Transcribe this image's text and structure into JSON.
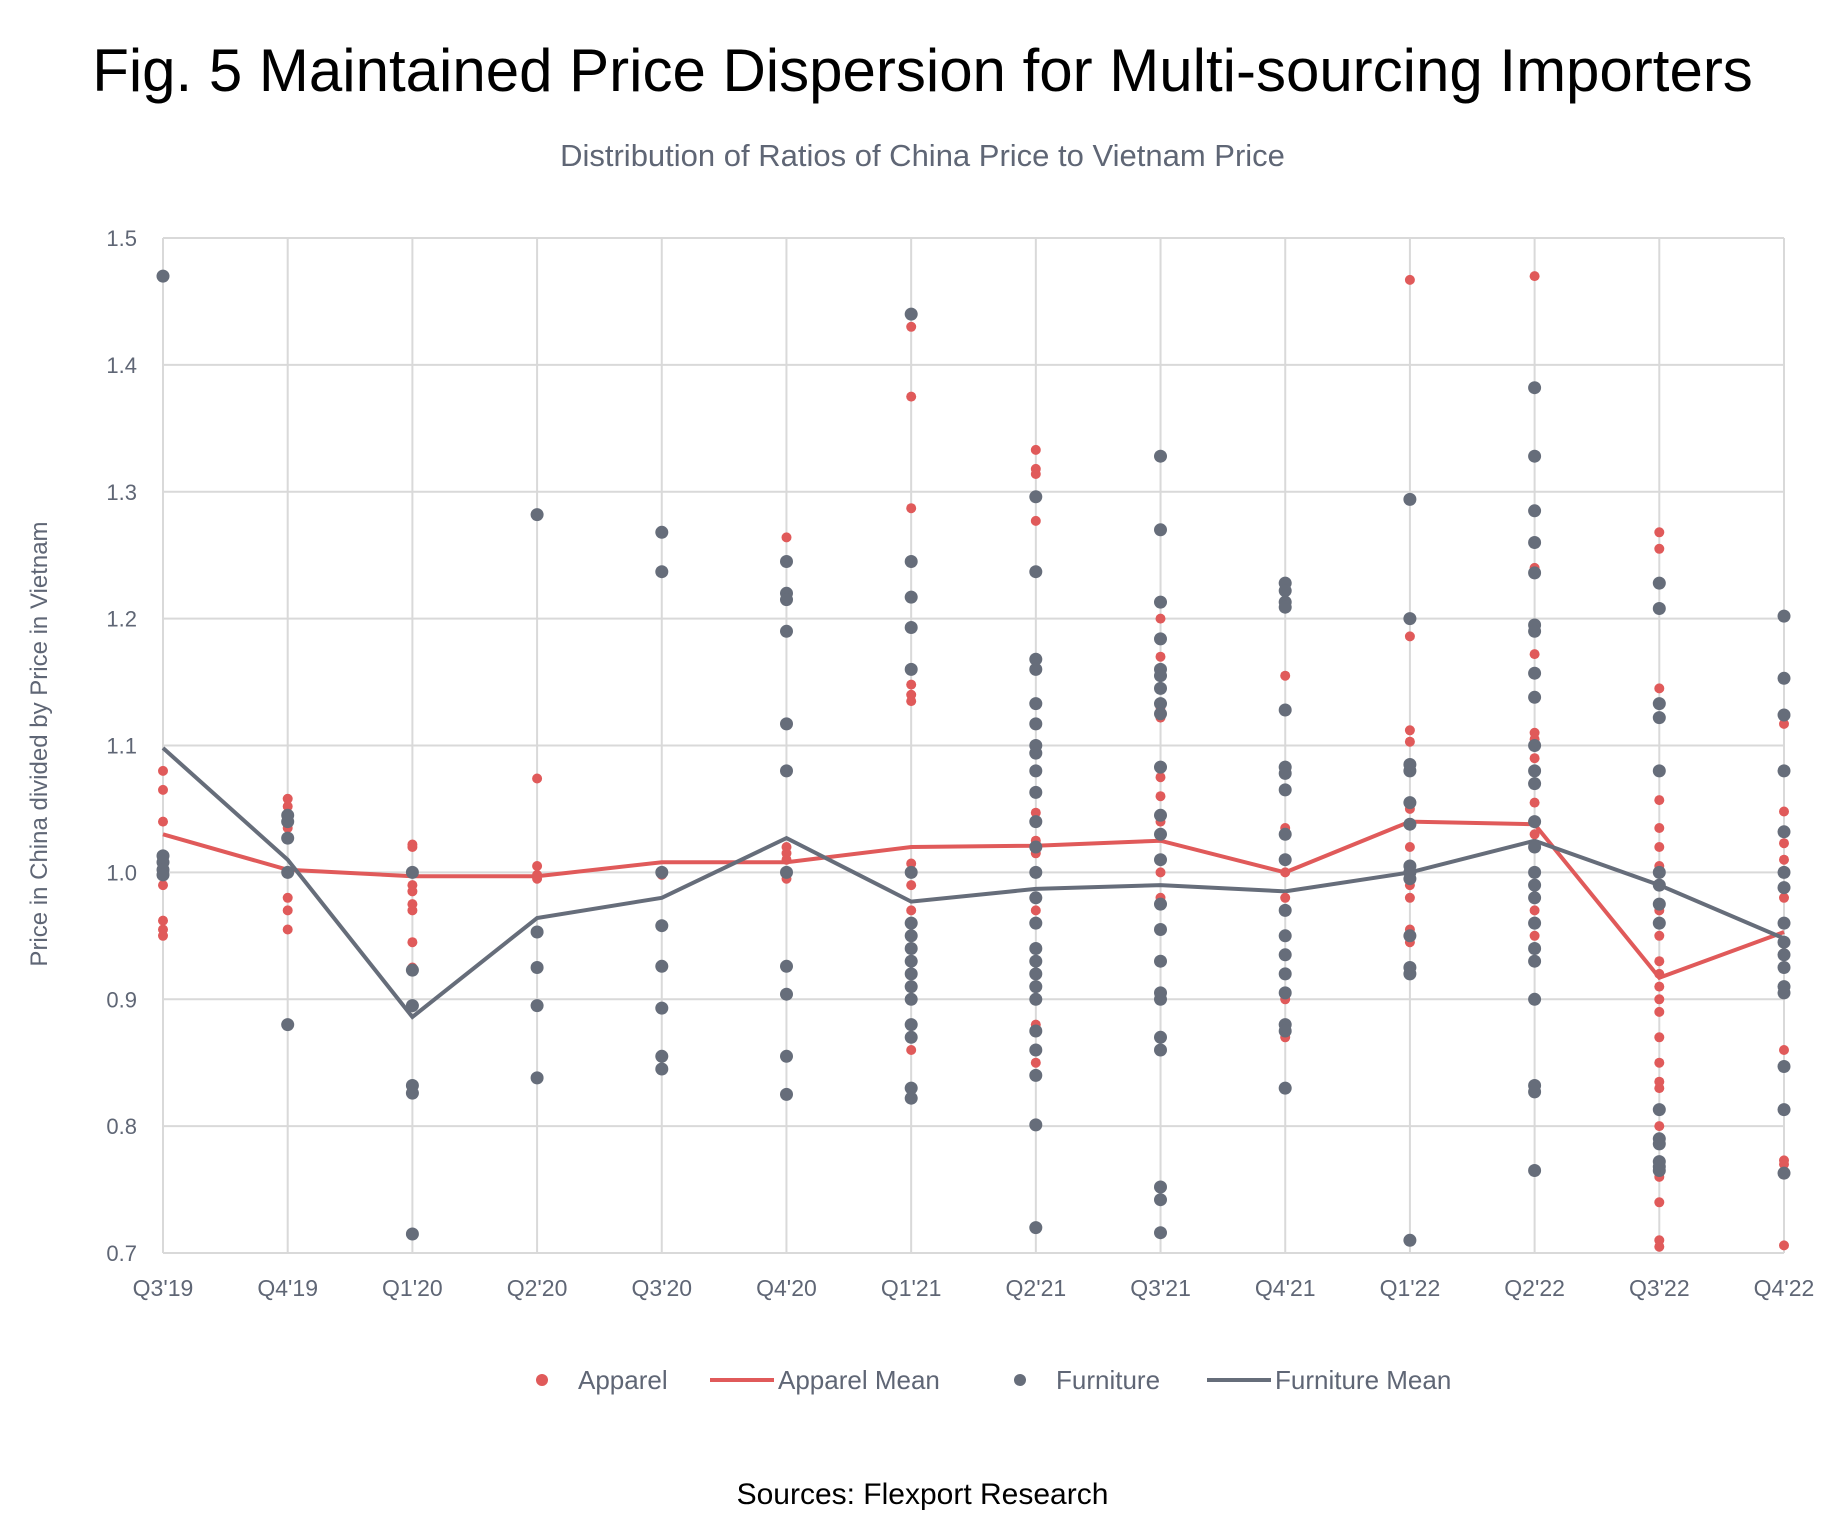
{
  "title": "Fig. 5 Maintained Price Dispersion for Multi-sourcing Importers",
  "subtitle": "Distribution of Ratios of China Price to Vietnam Price",
  "source": "Sources: Flexport Research",
  "colors": {
    "apparel": "#e05a5a",
    "furniture": "#666d7a",
    "grid": "#d9d9d9",
    "text": "#5f6675"
  },
  "chart_data": {
    "type": "scatter",
    "title": "Distribution of Ratios of China Price to Vietnam Price",
    "xlabel": "",
    "ylabel": "Price in China divided by Price in Vietnam",
    "ylim": [
      0.7,
      1.5
    ],
    "yticks": [
      "0.7",
      "0.8",
      "0.9",
      "1.0",
      "1.1",
      "1.2",
      "1.3",
      "1.4",
      "1.5"
    ],
    "categories": [
      "Q3'19",
      "Q4'19",
      "Q1'20",
      "Q2'20",
      "Q3'20",
      "Q4'20",
      "Q1'21",
      "Q2'21",
      "Q3'21",
      "Q4'21",
      "Q1'22",
      "Q2'22",
      "Q3'22",
      "Q4'22"
    ],
    "legend": [
      "Apparel",
      "Apparel Mean",
      "Furniture",
      "Furniture Mean"
    ],
    "series": [
      {
        "name": "Apparel",
        "kind": "points",
        "values": [
          [
            1.08,
            1.065,
            1.04,
            1.01,
            1.0,
            0.99,
            0.962,
            0.955,
            0.95
          ],
          [
            1.058,
            1.052,
            1.045,
            1.035,
            1.0,
            0.98,
            0.97,
            0.955
          ],
          [
            1.022,
            1.02,
            1.0,
            0.99,
            0.985,
            0.975,
            0.97,
            0.945,
            0.925
          ],
          [
            1.074,
            1.005,
            0.998,
            0.995
          ],
          [
            1.0,
            0.998
          ],
          [
            1.264,
            1.02,
            1.015,
            1.01,
            1.0,
            0.995
          ],
          [
            1.43,
            1.375,
            1.287,
            1.16,
            1.148,
            1.14,
            1.135,
            1.007,
            0.99,
            0.97,
            0.93,
            0.9,
            0.88,
            0.87,
            0.86
          ],
          [
            1.333,
            1.318,
            1.314,
            1.277,
            1.047,
            1.025,
            1.015,
            1.0,
            0.97,
            0.94,
            0.92,
            0.9,
            0.88,
            0.86,
            0.85
          ],
          [
            1.2,
            1.17,
            1.16,
            1.13,
            1.122,
            1.075,
            1.06,
            1.04,
            1.03,
            1.0,
            0.98
          ],
          [
            1.155,
            1.035,
            1.0,
            0.98,
            0.92,
            0.9,
            0.88,
            0.87
          ],
          [
            1.467,
            1.186,
            1.112,
            1.103,
            1.05,
            1.02,
            1.005,
            0.99,
            0.98,
            0.955,
            0.945
          ],
          [
            1.47,
            1.24,
            1.172,
            1.11,
            1.105,
            1.09,
            1.055,
            1.03,
            1.0,
            0.97,
            0.95
          ],
          [
            1.268,
            1.255,
            1.145,
            1.057,
            1.035,
            1.02,
            1.005,
            0.97,
            0.95,
            0.93,
            0.92,
            0.91,
            0.9,
            0.89,
            0.87,
            0.85,
            0.835,
            0.83,
            0.8,
            0.76,
            0.74,
            0.71,
            0.705
          ],
          [
            1.117,
            1.048,
            1.023,
            1.01,
            1.0,
            0.98,
            0.96,
            0.945,
            0.86,
            0.773,
            0.77,
            0.706
          ]
        ]
      },
      {
        "name": "Furniture",
        "kind": "points",
        "values": [
          [
            1.47,
            1.013,
            1.008,
            1.002,
            0.998
          ],
          [
            1.045,
            1.04,
            1.027,
            1.0,
            0.88
          ],
          [
            1.0,
            0.923,
            0.895,
            0.832,
            0.826,
            0.715
          ],
          [
            1.282,
            0.953,
            0.925,
            0.895,
            0.838
          ],
          [
            1.268,
            1.237,
            1.0,
            0.958,
            0.926,
            0.893,
            0.855,
            0.845
          ],
          [
            1.245,
            1.22,
            1.215,
            1.19,
            1.117,
            1.08,
            1.0,
            0.926,
            0.904,
            0.855,
            0.825
          ],
          [
            1.44,
            1.245,
            1.217,
            1.193,
            1.16,
            1.0,
            0.96,
            0.95,
            0.94,
            0.93,
            0.92,
            0.91,
            0.9,
            0.88,
            0.87,
            0.83,
            0.822
          ],
          [
            1.296,
            1.237,
            1.168,
            1.16,
            1.133,
            1.117,
            1.1,
            1.094,
            1.08,
            1.063,
            1.04,
            1.02,
            1.0,
            0.98,
            0.96,
            0.94,
            0.93,
            0.92,
            0.91,
            0.9,
            0.875,
            0.86,
            0.84,
            0.801,
            0.72
          ],
          [
            1.328,
            1.27,
            1.213,
            1.184,
            1.16,
            1.155,
            1.145,
            1.133,
            1.125,
            1.083,
            1.045,
            1.03,
            1.01,
            0.975,
            0.955,
            0.93,
            0.905,
            0.9,
            0.87,
            0.86,
            0.752,
            0.742,
            0.716
          ],
          [
            1.228,
            1.222,
            1.213,
            1.209,
            1.128,
            1.083,
            1.078,
            1.065,
            1.03,
            1.01,
            0.97,
            0.95,
            0.935,
            0.92,
            0.905,
            0.88,
            0.875,
            0.83
          ],
          [
            1.294,
            1.2,
            1.085,
            1.08,
            1.055,
            1.038,
            1.005,
            1.0,
            0.995,
            0.95,
            0.925,
            0.92,
            0.71
          ],
          [
            1.382,
            1.328,
            1.285,
            1.26,
            1.236,
            1.195,
            1.19,
            1.157,
            1.138,
            1.1,
            1.08,
            1.07,
            1.04,
            1.02,
            1.0,
            0.99,
            0.98,
            0.96,
            0.94,
            0.93,
            0.9,
            0.832,
            0.827,
            0.765
          ],
          [
            1.228,
            1.208,
            1.133,
            1.122,
            1.08,
            1.0,
            0.99,
            0.975,
            0.96,
            0.813,
            0.79,
            0.786,
            0.772,
            0.768,
            0.765
          ],
          [
            1.202,
            1.153,
            1.124,
            1.08,
            1.032,
            1.0,
            0.988,
            0.96,
            0.945,
            0.935,
            0.925,
            0.91,
            0.905,
            0.847,
            0.813,
            0.763
          ]
        ]
      },
      {
        "name": "Apparel Mean",
        "kind": "line",
        "values": [
          1.03,
          1.002,
          0.997,
          0.997,
          1.008,
          1.008,
          1.02,
          1.021,
          1.025,
          1.0,
          1.04,
          1.038,
          0.917,
          0.953
        ]
      },
      {
        "name": "Furniture Mean",
        "kind": "line",
        "values": [
          1.098,
          1.01,
          0.886,
          0.964,
          0.98,
          1.027,
          0.977,
          0.987,
          0.99,
          0.985,
          1.0,
          1.025,
          0.99,
          0.948
        ]
      }
    ]
  }
}
